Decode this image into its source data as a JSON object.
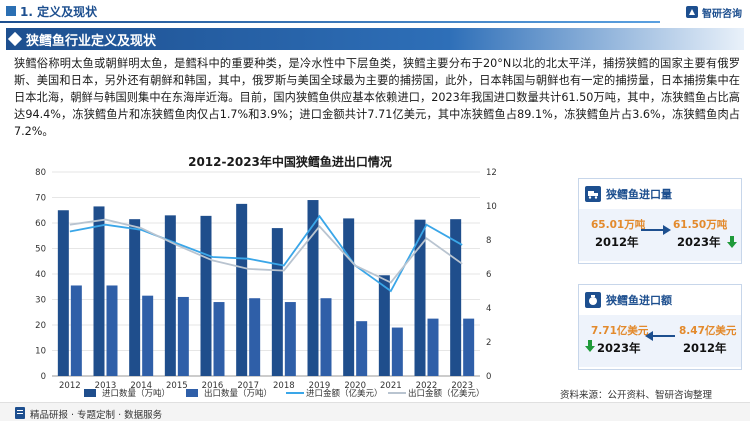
{
  "header": {
    "section": "1. 定义及现状",
    "brand": "智研咨询"
  },
  "title": "狭鳕鱼行业定义及现状",
  "paragraph": "狭鳕俗称明太鱼或朝鲜明太鱼，是鳕科中的重要种类，是冷水性中下层鱼类，狭鳕主要分布于20°N以北的北太平洋，捕捞狭鳕的国家主要有俄罗斯、美国和日本，另外还有朝鲜和韩国，其中，俄罗斯与美国全球最为主要的捕捞国，此外，日本韩国与朝鲜也有一定的捕捞量，日本捕捞集中在日本北海，朝鲜与韩国则集中在东海岸近海。目前，国内狭鳕鱼供应基本依赖进口，2023年我国进口数量共计61.50万吨，其中，冻狭鳕鱼占比高达94.4%，冻狭鳕鱼片和冻狭鳕鱼肉仅占1.7%和3.9%；进口金额共计7.71亿美元，其中冻狭鳕鱼占89.1%，冻狭鳕鱼片占3.6%，冻狭鳕鱼肉占7.2%。",
  "chart_data": {
    "type": "bar",
    "title": "2012-2023年中国狭鳕鱼进出口情况",
    "categories": [
      "2012",
      "2013",
      "2014",
      "2015",
      "2016",
      "2017",
      "2018",
      "2019",
      "2020",
      "2021",
      "2022",
      "2023"
    ],
    "y_left": {
      "ticks": [
        "0",
        "10",
        "20",
        "30",
        "40",
        "50",
        "60",
        "70",
        "80"
      ],
      "ylim": [
        0,
        80
      ]
    },
    "y_right": {
      "ticks": [
        "0",
        "2",
        "4",
        "6",
        "8",
        "10",
        "12"
      ],
      "ylim": [
        0,
        12
      ]
    },
    "series": [
      {
        "name": "进口数量（万吨）",
        "kind": "bar",
        "axis": "left",
        "color": "#1f4e8c",
        "values": [
          65.0,
          66.5,
          61.5,
          63.0,
          62.8,
          67.5,
          58.0,
          69.0,
          61.8,
          39.5,
          61.3,
          61.5
        ]
      },
      {
        "name": "出口数量（万吨）",
        "kind": "bar",
        "axis": "left",
        "color": "#2f5fa8",
        "values": [
          35.5,
          35.5,
          31.5,
          31.0,
          29.0,
          30.5,
          29.0,
          30.5,
          21.5,
          19.0,
          22.5,
          22.5
        ]
      },
      {
        "name": "进口金额（亿美元）",
        "kind": "line",
        "axis": "right",
        "color": "#3aa6e8",
        "values": [
          8.5,
          8.9,
          8.6,
          7.8,
          7.0,
          6.9,
          6.5,
          9.4,
          6.5,
          5.0,
          8.9,
          7.71
        ]
      },
      {
        "name": "出口金额（亿美元）",
        "kind": "line",
        "axis": "right",
        "color": "#b9c4d0",
        "values": [
          8.9,
          9.2,
          8.7,
          7.7,
          6.8,
          6.3,
          6.2,
          8.8,
          6.5,
          5.5,
          8.1,
          6.6
        ]
      }
    ]
  },
  "panels": {
    "import_volume": {
      "title": "狭鳕鱼进口量",
      "left_value": "65.01万吨",
      "left_year": "2012年",
      "right_value": "61.50万吨",
      "right_year": "2023年"
    },
    "import_value": {
      "title": "狭鳕鱼进口额",
      "left_value": "7.71亿美元",
      "left_year": "2023年",
      "right_value": "8.47亿美元",
      "right_year": "2012年"
    }
  },
  "source": "资料来源：公开资料、智研咨询整理",
  "footer": "精品研报 · 专题定制 · 数据服务",
  "colors": {
    "primary": "#1d4f8f",
    "accent_orange": "#e38a2c",
    "down_green": "#1f9a3a"
  }
}
